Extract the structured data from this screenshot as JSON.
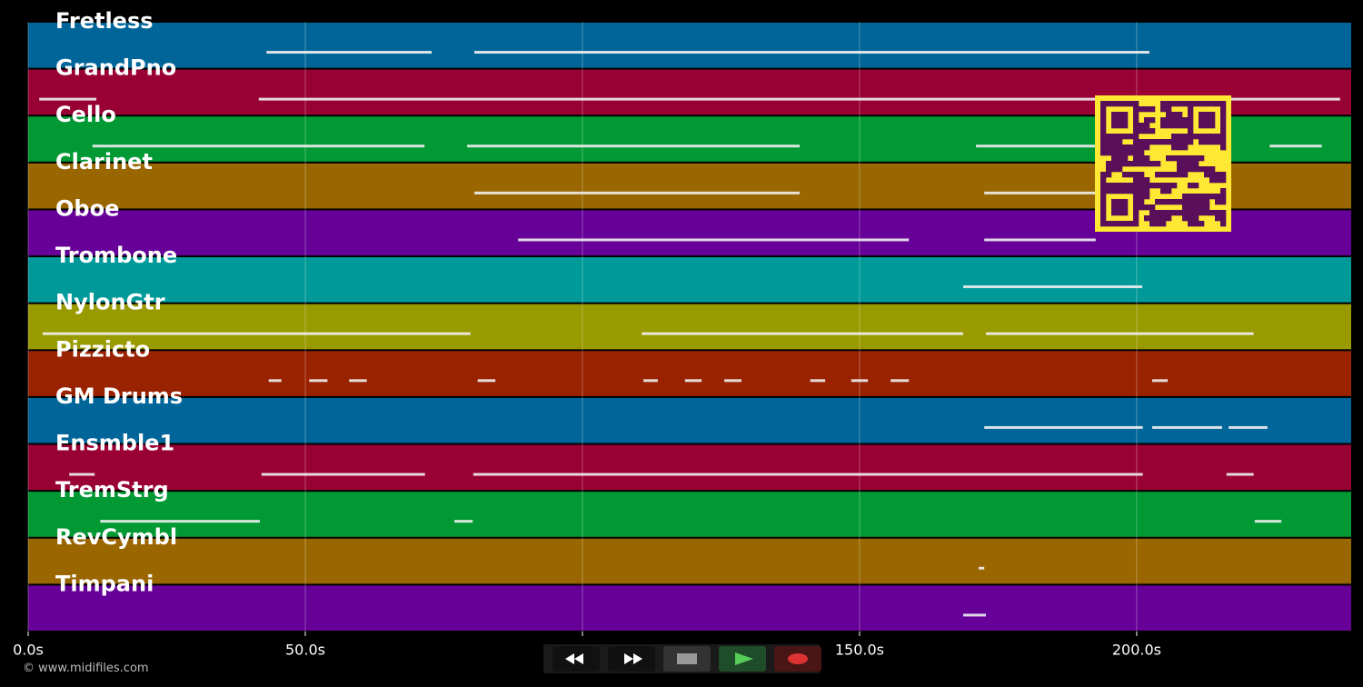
{
  "timeline": {
    "xlim": [
      0,
      238.7
    ],
    "xticks": [
      {
        "value": 0,
        "label": "0.0s"
      },
      {
        "value": 50,
        "label": "50.0s"
      },
      {
        "value": 100,
        "label": "100.0s"
      },
      {
        "value": 150,
        "label": "150.0s"
      },
      {
        "value": 200,
        "label": "200.0s"
      }
    ],
    "grid": true,
    "tracks": [
      {
        "name": "Fretless",
        "color": "#006699",
        "notes": [
          [
            43,
            72.8
          ],
          [
            80.5,
            202.3
          ]
        ]
      },
      {
        "name": "GrandPno",
        "color": "#990033",
        "notes": [
          [
            2,
            12.3
          ],
          [
            41.6,
            236.7
          ]
        ]
      },
      {
        "name": "Cello",
        "color": "#009933",
        "notes": [
          [
            11.6,
            71.5
          ],
          [
            79.2,
            139.2
          ],
          [
            171,
            192.6
          ],
          [
            224,
            233.4
          ]
        ]
      },
      {
        "name": "Clarinet",
        "color": "#996600",
        "notes": [
          [
            80.5,
            139.2
          ],
          [
            172.5,
            192.6
          ]
        ]
      },
      {
        "name": "Oboe",
        "color": "#660099",
        "notes": [
          [
            88.4,
            158.9
          ],
          [
            172.5,
            192.6
          ]
        ]
      },
      {
        "name": "Trombone",
        "color": "#009999",
        "notes": [
          [
            168.7,
            201
          ]
        ]
      },
      {
        "name": "NylonGtr",
        "color": "#999900",
        "notes": [
          [
            2.6,
            79.8
          ],
          [
            110.7,
            168.7
          ],
          [
            172.8,
            221.1
          ]
        ]
      },
      {
        "name": "Pizzicto",
        "color": "#992200",
        "notes": [
          [
            43.4,
            45.7
          ],
          [
            50.7,
            54
          ],
          [
            57.9,
            61.1
          ],
          [
            81.1,
            84.3
          ],
          [
            111,
            113.6
          ],
          [
            118.5,
            121.5
          ],
          [
            125.6,
            128.7
          ],
          [
            141.1,
            143.8
          ],
          [
            148.5,
            151.5
          ],
          [
            155.6,
            158.9
          ],
          [
            202.8,
            205.6
          ]
        ]
      },
      {
        "name": "GM Drums",
        "color": "#006699",
        "notes": [
          [
            172.5,
            201.1
          ],
          [
            202.8,
            215.4
          ],
          [
            216.6,
            223.6
          ]
        ]
      },
      {
        "name": "Ensmble1",
        "color": "#990033",
        "notes": [
          [
            7.4,
            12
          ],
          [
            42.1,
            71.6
          ],
          [
            80.3,
            201.1
          ],
          [
            216.2,
            221.1
          ]
        ]
      },
      {
        "name": "TremStrg",
        "color": "#009933",
        "notes": [
          [
            13,
            41.8
          ],
          [
            76.9,
            80.2
          ],
          [
            221.3,
            226.1
          ]
        ]
      },
      {
        "name": "RevCymbl",
        "color": "#996600",
        "notes": [
          [
            171.5,
            172.5
          ]
        ]
      },
      {
        "name": "Timpani",
        "color": "#660099",
        "notes": [
          [
            168.7,
            172.8
          ]
        ]
      }
    ]
  },
  "footer": {
    "copyright": "© www.midifiles.com"
  }
}
